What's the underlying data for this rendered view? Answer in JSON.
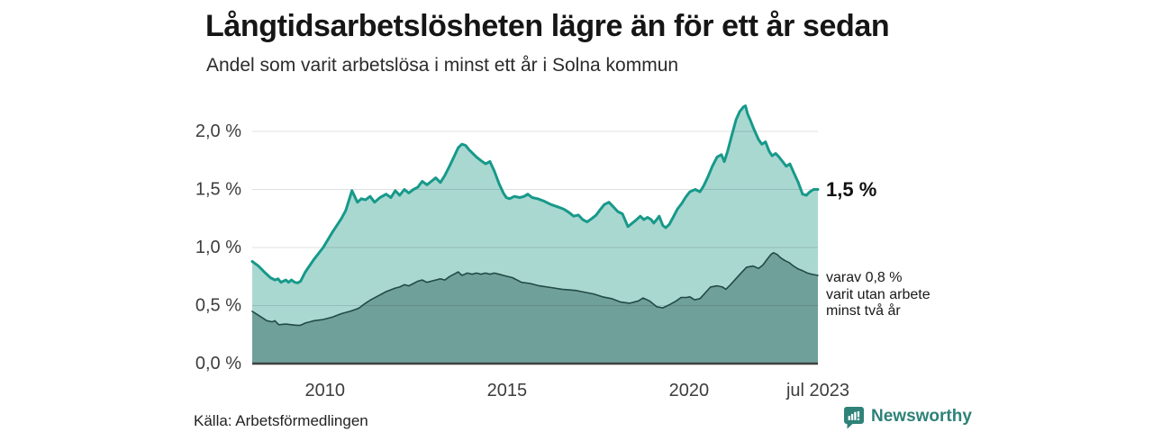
{
  "header": {
    "title": "Långtidsarbetslösheten lägre än för ett år sedan",
    "subtitle": "Andel som varit arbetslösa i minst ett år i Solna kommun"
  },
  "annotations": {
    "end_label": "1,5 %",
    "secondary": [
      "varav 0,8 %",
      "varit utan arbete",
      "minst två år"
    ]
  },
  "footer": {
    "source": "Källa: Arbetsförmedlingen",
    "brand": "Newsworthy"
  },
  "colors": {
    "title": "#161616",
    "axis_text": "#3d3d3d",
    "grid": "rgba(0,0,0,0.12)",
    "axis_line": "#3f3f3f",
    "brand": "#2f8278"
  },
  "chart_data": {
    "type": "area",
    "title": "Långtidsarbetslösheten lägre än för ett år sedan",
    "subtitle": "Andel som varit arbetslösa i minst ett år i Solna kommun",
    "y_unit": "%",
    "x_domain": [
      2008.0,
      2023.54
    ],
    "ylim": [
      0,
      2.0
    ],
    "grid": true,
    "yticks": [
      {
        "y": 0.0,
        "label": "0,0 %"
      },
      {
        "y": 0.5,
        "label": "0,5 %"
      },
      {
        "y": 1.0,
        "label": "1,0 %"
      },
      {
        "y": 1.5,
        "label": "1,5 %"
      },
      {
        "y": 2.0,
        "label": "2,0 %"
      }
    ],
    "xticks": [
      {
        "x": 2010,
        "label": "2010"
      },
      {
        "x": 2015,
        "label": "2015"
      },
      {
        "x": 2020,
        "label": "2020"
      },
      {
        "x": 2023.54,
        "label": "jul 2023"
      }
    ],
    "series": [
      {
        "name": "minst ett år",
        "end_value": 1.5,
        "stroke": "#17998a",
        "fill": "#a9d8d1",
        "stroke_width": 3,
        "points": [
          [
            2008.0,
            0.88
          ],
          [
            2008.17,
            0.84
          ],
          [
            2008.33,
            0.79
          ],
          [
            2008.5,
            0.74
          ],
          [
            2008.62,
            0.72
          ],
          [
            2008.71,
            0.73
          ],
          [
            2008.79,
            0.7
          ],
          [
            2008.92,
            0.72
          ],
          [
            2009.0,
            0.7
          ],
          [
            2009.08,
            0.72
          ],
          [
            2009.17,
            0.7
          ],
          [
            2009.25,
            0.695
          ],
          [
            2009.33,
            0.71
          ],
          [
            2009.46,
            0.79
          ],
          [
            2009.7,
            0.9
          ],
          [
            2009.95,
            1.0
          ],
          [
            2010.2,
            1.13
          ],
          [
            2010.45,
            1.25
          ],
          [
            2010.57,
            1.32
          ],
          [
            2010.74,
            1.49
          ],
          [
            2010.89,
            1.39
          ],
          [
            2011.0,
            1.42
          ],
          [
            2011.11,
            1.41
          ],
          [
            2011.24,
            1.44
          ],
          [
            2011.36,
            1.39
          ],
          [
            2011.51,
            1.43
          ],
          [
            2011.68,
            1.46
          ],
          [
            2011.81,
            1.43
          ],
          [
            2011.93,
            1.49
          ],
          [
            2012.05,
            1.45
          ],
          [
            2012.18,
            1.5
          ],
          [
            2012.3,
            1.47
          ],
          [
            2012.43,
            1.5
          ],
          [
            2012.55,
            1.52
          ],
          [
            2012.67,
            1.57
          ],
          [
            2012.8,
            1.54
          ],
          [
            2012.92,
            1.57
          ],
          [
            2013.04,
            1.6
          ],
          [
            2013.17,
            1.56
          ],
          [
            2013.29,
            1.62
          ],
          [
            2013.42,
            1.7
          ],
          [
            2013.54,
            1.78
          ],
          [
            2013.66,
            1.86
          ],
          [
            2013.76,
            1.89
          ],
          [
            2013.86,
            1.88
          ],
          [
            2013.96,
            1.84
          ],
          [
            2014.06,
            1.81
          ],
          [
            2014.16,
            1.78
          ],
          [
            2014.28,
            1.75
          ],
          [
            2014.41,
            1.72
          ],
          [
            2014.53,
            1.74
          ],
          [
            2014.65,
            1.66
          ],
          [
            2014.78,
            1.55
          ],
          [
            2014.9,
            1.47
          ],
          [
            2014.98,
            1.43
          ],
          [
            2015.07,
            1.42
          ],
          [
            2015.2,
            1.44
          ],
          [
            2015.35,
            1.43
          ],
          [
            2015.47,
            1.44
          ],
          [
            2015.57,
            1.46
          ],
          [
            2015.69,
            1.43
          ],
          [
            2015.84,
            1.42
          ],
          [
            2016.01,
            1.4
          ],
          [
            2016.21,
            1.37
          ],
          [
            2016.39,
            1.35
          ],
          [
            2016.56,
            1.33
          ],
          [
            2016.71,
            1.3
          ],
          [
            2016.83,
            1.27
          ],
          [
            2016.96,
            1.28
          ],
          [
            2017.08,
            1.24
          ],
          [
            2017.2,
            1.22
          ],
          [
            2017.33,
            1.25
          ],
          [
            2017.45,
            1.28
          ],
          [
            2017.57,
            1.33
          ],
          [
            2017.67,
            1.37
          ],
          [
            2017.8,
            1.39
          ],
          [
            2017.92,
            1.35
          ],
          [
            2018.04,
            1.31
          ],
          [
            2018.17,
            1.29
          ],
          [
            2018.32,
            1.18
          ],
          [
            2018.44,
            1.21
          ],
          [
            2018.56,
            1.24
          ],
          [
            2018.66,
            1.27
          ],
          [
            2018.76,
            1.24
          ],
          [
            2018.86,
            1.26
          ],
          [
            2018.96,
            1.24
          ],
          [
            2019.03,
            1.21
          ],
          [
            2019.11,
            1.24
          ],
          [
            2019.18,
            1.27
          ],
          [
            2019.28,
            1.19
          ],
          [
            2019.36,
            1.17
          ],
          [
            2019.46,
            1.2
          ],
          [
            2019.53,
            1.24
          ],
          [
            2019.68,
            1.33
          ],
          [
            2019.8,
            1.38
          ],
          [
            2019.9,
            1.43
          ],
          [
            2020.02,
            1.48
          ],
          [
            2020.17,
            1.5
          ],
          [
            2020.3,
            1.48
          ],
          [
            2020.4,
            1.53
          ],
          [
            2020.52,
            1.61
          ],
          [
            2020.64,
            1.7
          ],
          [
            2020.77,
            1.78
          ],
          [
            2020.89,
            1.8
          ],
          [
            2020.97,
            1.74
          ],
          [
            2021.06,
            1.83
          ],
          [
            2021.16,
            1.95
          ],
          [
            2021.29,
            2.1
          ],
          [
            2021.39,
            2.17
          ],
          [
            2021.49,
            2.21
          ],
          [
            2021.55,
            2.22
          ],
          [
            2021.61,
            2.15
          ],
          [
            2021.68,
            2.1
          ],
          [
            2021.78,
            2.02
          ],
          [
            2021.91,
            1.93
          ],
          [
            2022.0,
            1.89
          ],
          [
            2022.1,
            1.91
          ],
          [
            2022.2,
            1.83
          ],
          [
            2022.28,
            1.79
          ],
          [
            2022.38,
            1.81
          ],
          [
            2022.47,
            1.78
          ],
          [
            2022.57,
            1.74
          ],
          [
            2022.67,
            1.7
          ],
          [
            2022.77,
            1.72
          ],
          [
            2022.87,
            1.65
          ],
          [
            2023.0,
            1.56
          ],
          [
            2023.12,
            1.46
          ],
          [
            2023.22,
            1.45
          ],
          [
            2023.32,
            1.48
          ],
          [
            2023.42,
            1.5
          ],
          [
            2023.54,
            1.5
          ]
        ]
      },
      {
        "name": "minst två år",
        "end_value": 0.8,
        "stroke": "#224b45",
        "fill": "#70a09a",
        "stroke_width": 1.6,
        "points": [
          [
            2008.0,
            0.45
          ],
          [
            2008.2,
            0.41
          ],
          [
            2008.4,
            0.37
          ],
          [
            2008.55,
            0.36
          ],
          [
            2008.62,
            0.37
          ],
          [
            2008.73,
            0.335
          ],
          [
            2008.92,
            0.34
          ],
          [
            2009.08,
            0.335
          ],
          [
            2009.21,
            0.33
          ],
          [
            2009.33,
            0.33
          ],
          [
            2009.46,
            0.35
          ],
          [
            2009.58,
            0.36
          ],
          [
            2009.7,
            0.37
          ],
          [
            2009.95,
            0.38
          ],
          [
            2010.2,
            0.4
          ],
          [
            2010.45,
            0.43
          ],
          [
            2010.69,
            0.45
          ],
          [
            2010.87,
            0.47
          ],
          [
            2010.94,
            0.48
          ],
          [
            2011.11,
            0.52
          ],
          [
            2011.26,
            0.55
          ],
          [
            2011.44,
            0.58
          ],
          [
            2011.68,
            0.62
          ],
          [
            2011.93,
            0.65
          ],
          [
            2012.05,
            0.66
          ],
          [
            2012.18,
            0.68
          ],
          [
            2012.3,
            0.67
          ],
          [
            2012.43,
            0.69
          ],
          [
            2012.55,
            0.71
          ],
          [
            2012.67,
            0.72
          ],
          [
            2012.8,
            0.7
          ],
          [
            2012.92,
            0.71
          ],
          [
            2013.04,
            0.72
          ],
          [
            2013.17,
            0.73
          ],
          [
            2013.29,
            0.72
          ],
          [
            2013.42,
            0.75
          ],
          [
            2013.54,
            0.77
          ],
          [
            2013.66,
            0.79
          ],
          [
            2013.76,
            0.76
          ],
          [
            2013.91,
            0.78
          ],
          [
            2014.04,
            0.77
          ],
          [
            2014.16,
            0.78
          ],
          [
            2014.28,
            0.77
          ],
          [
            2014.41,
            0.78
          ],
          [
            2014.53,
            0.77
          ],
          [
            2014.65,
            0.78
          ],
          [
            2014.78,
            0.77
          ],
          [
            2014.9,
            0.76
          ],
          [
            2015.15,
            0.74
          ],
          [
            2015.4,
            0.7
          ],
          [
            2015.64,
            0.69
          ],
          [
            2015.89,
            0.67
          ],
          [
            2016.21,
            0.655
          ],
          [
            2016.51,
            0.64
          ],
          [
            2016.88,
            0.63
          ],
          [
            2017.05,
            0.62
          ],
          [
            2017.38,
            0.6
          ],
          [
            2017.62,
            0.575
          ],
          [
            2017.87,
            0.56
          ],
          [
            2018.12,
            0.53
          ],
          [
            2018.37,
            0.52
          ],
          [
            2018.61,
            0.54
          ],
          [
            2018.74,
            0.565
          ],
          [
            2018.91,
            0.54
          ],
          [
            2019.11,
            0.49
          ],
          [
            2019.28,
            0.48
          ],
          [
            2019.48,
            0.51
          ],
          [
            2019.65,
            0.54
          ],
          [
            2019.78,
            0.57
          ],
          [
            2019.93,
            0.57
          ],
          [
            2020.02,
            0.575
          ],
          [
            2020.15,
            0.55
          ],
          [
            2020.3,
            0.56
          ],
          [
            2020.42,
            0.6
          ],
          [
            2020.59,
            0.66
          ],
          [
            2020.77,
            0.67
          ],
          [
            2020.92,
            0.66
          ],
          [
            2021.01,
            0.64
          ],
          [
            2021.14,
            0.68
          ],
          [
            2021.34,
            0.75
          ],
          [
            2021.46,
            0.79
          ],
          [
            2021.58,
            0.83
          ],
          [
            2021.76,
            0.84
          ],
          [
            2021.91,
            0.82
          ],
          [
            2022.03,
            0.85
          ],
          [
            2022.15,
            0.9
          ],
          [
            2022.25,
            0.94
          ],
          [
            2022.32,
            0.955
          ],
          [
            2022.42,
            0.94
          ],
          [
            2022.52,
            0.91
          ],
          [
            2022.62,
            0.89
          ],
          [
            2022.75,
            0.87
          ],
          [
            2022.87,
            0.84
          ],
          [
            2023.0,
            0.815
          ],
          [
            2023.12,
            0.8
          ],
          [
            2023.25,
            0.78
          ],
          [
            2023.37,
            0.77
          ],
          [
            2023.54,
            0.76
          ]
        ]
      }
    ]
  }
}
